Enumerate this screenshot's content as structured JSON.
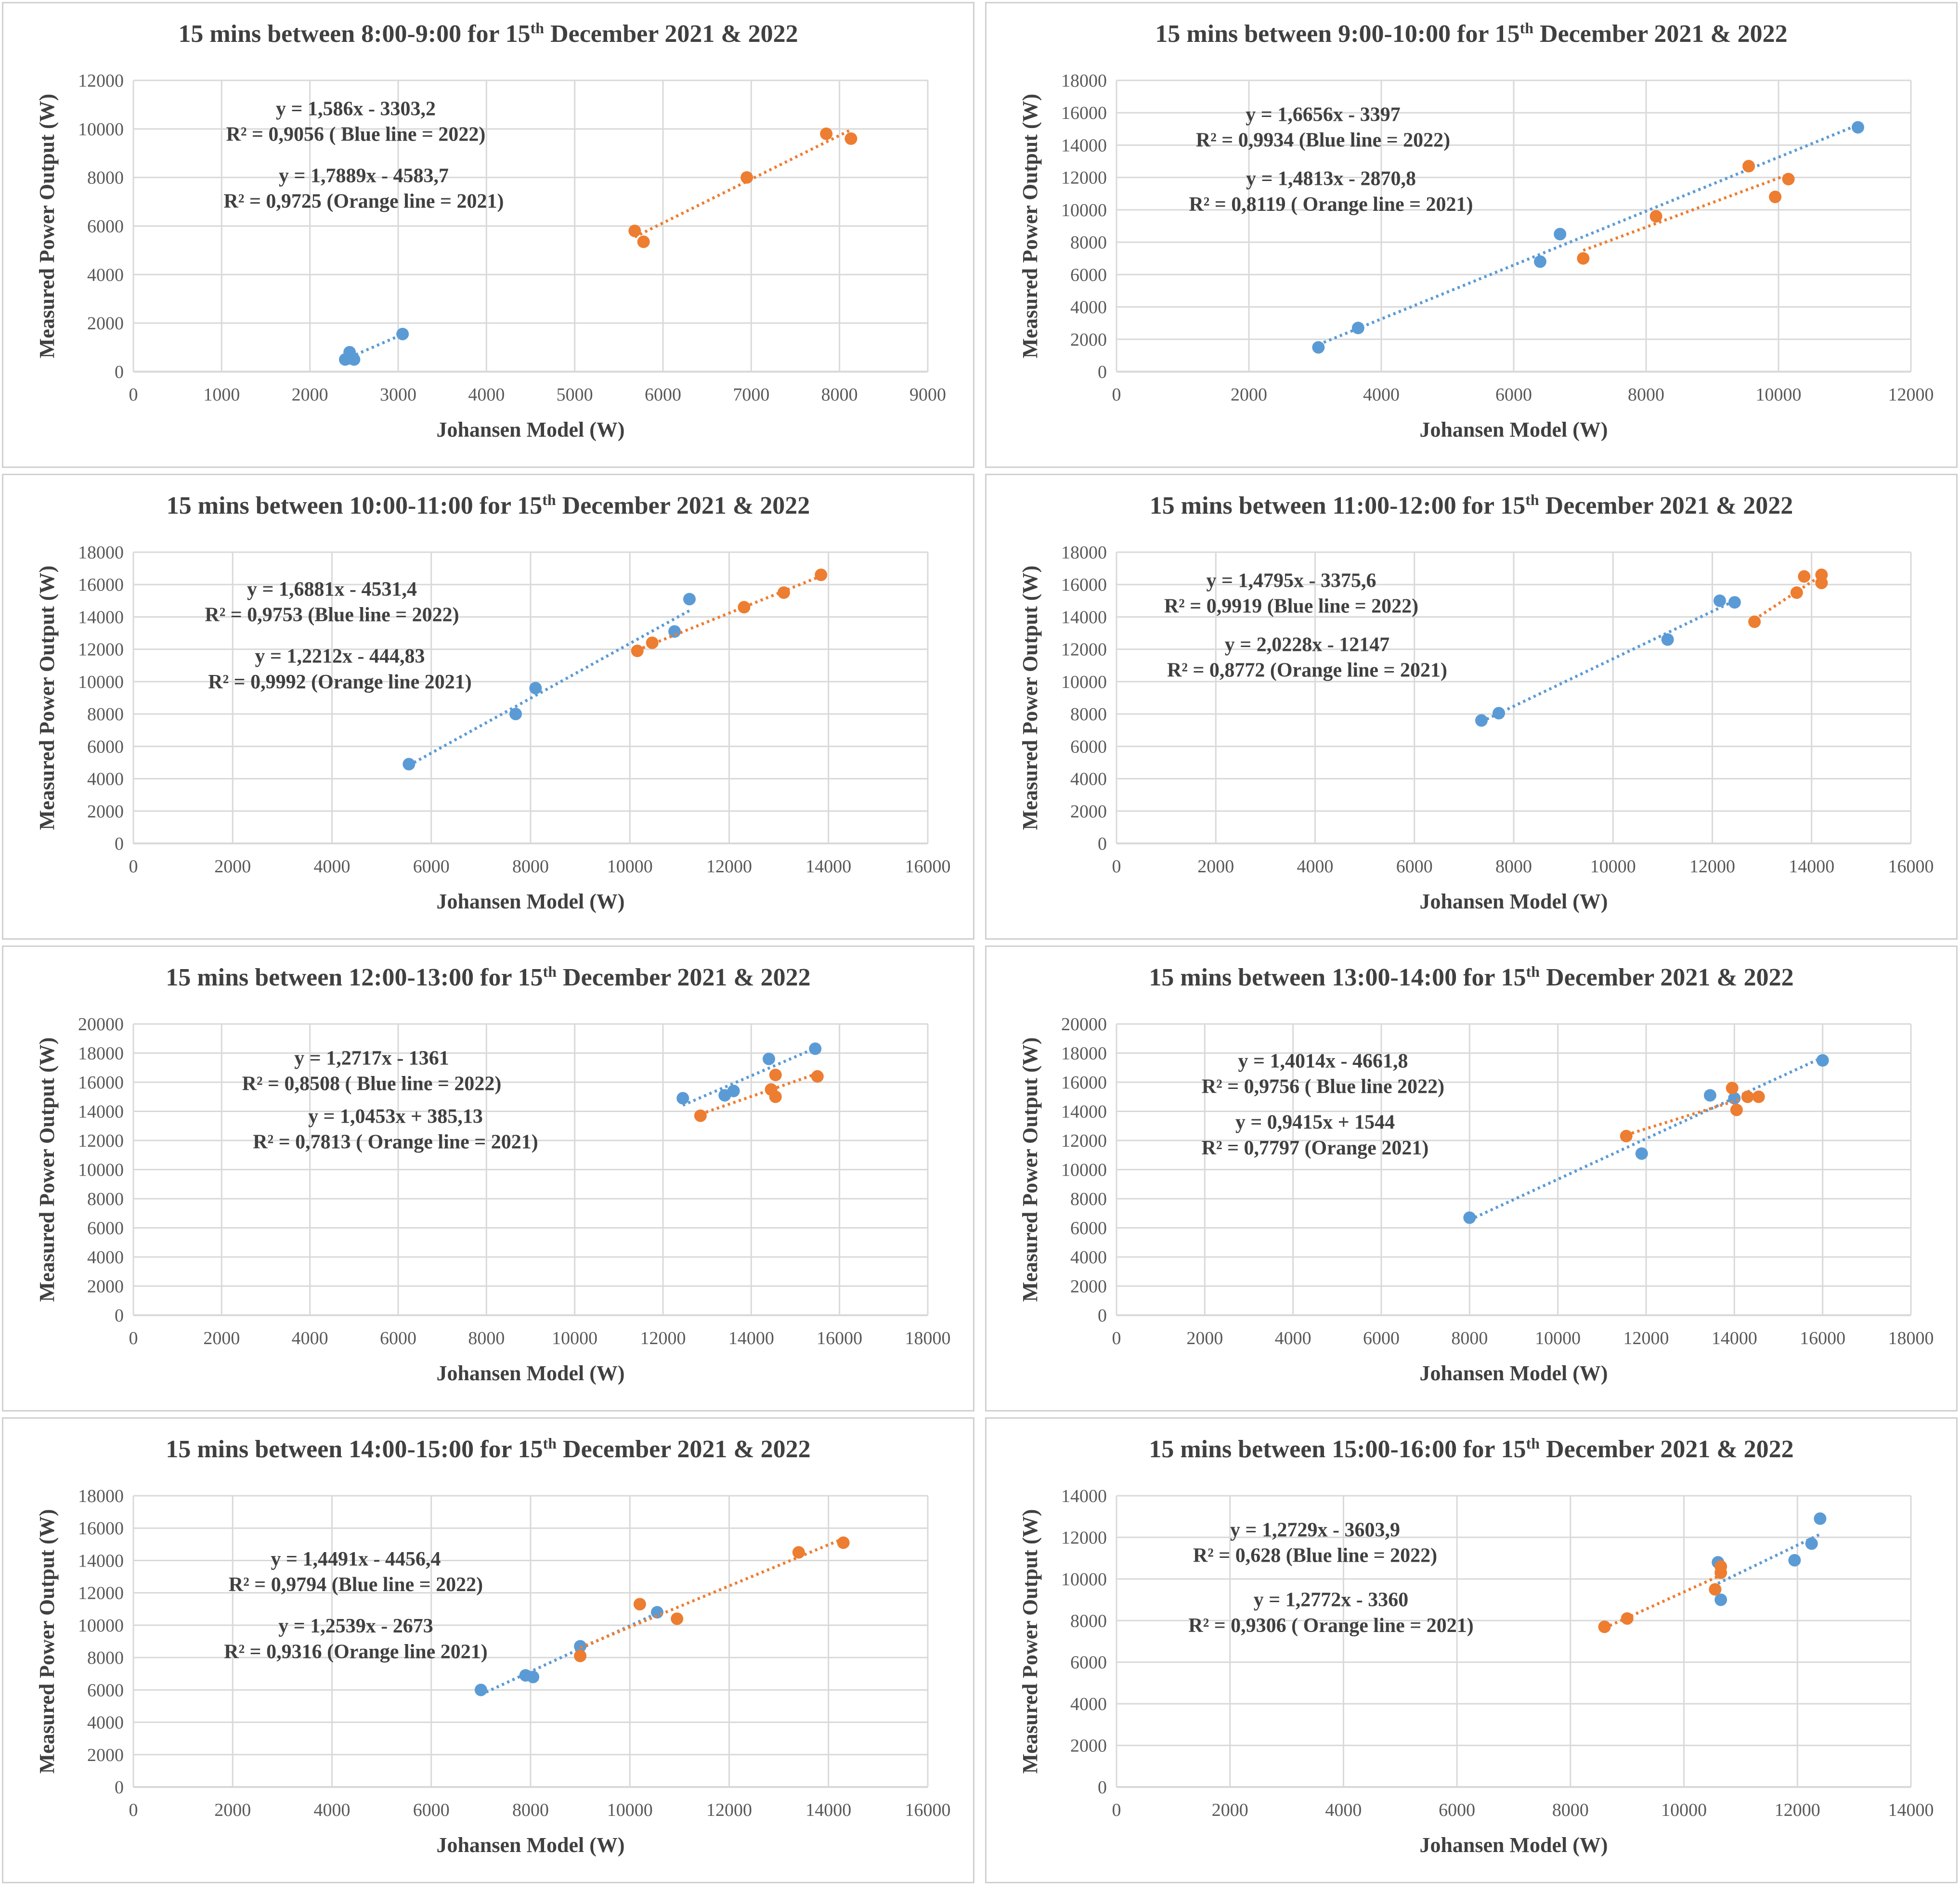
{
  "colors": {
    "blue": "#5B9BD5",
    "orange": "#ED7D31",
    "grid": "#d9d9d9"
  },
  "chart_data": [
    {
      "type": "scatter",
      "title": [
        "15 mins between 8:00-9:00 for 15",
        "th",
        " December 2021 & 2022"
      ],
      "xlabel": "Johansen Model (W)",
      "ylabel": "Measured Power Output (W)",
      "xlim": [
        0,
        9000
      ],
      "xstep": 1000,
      "ylim": [
        0,
        12000
      ],
      "ystep": 2000,
      "series": [
        {
          "name": "2022",
          "color": "blue",
          "points": [
            [
              2400,
              500
            ],
            [
              2450,
              800
            ],
            [
              2500,
              500
            ],
            [
              2450,
              550
            ],
            [
              3050,
              1550
            ]
          ]
        },
        {
          "name": "2021",
          "color": "orange",
          "points": [
            [
              5680,
              5800
            ],
            [
              5780,
              5350
            ],
            [
              6950,
              8000
            ],
            [
              7850,
              9800
            ],
            [
              8130,
              9600
            ]
          ]
        }
      ],
      "annotations": [
        "y = 1,586x - 3303,2",
        "R² = 0,9056 ( Blue line = 2022)",
        "y = 1,7889x - 4583,7",
        "R² = 0,9725 (Orange line = 2021)"
      ]
    },
    {
      "type": "scatter",
      "title": [
        "15 mins between 9:00-10:00 for 15",
        "th",
        " December 2021 & 2022"
      ],
      "xlabel": "Johansen Model (W)",
      "ylabel": "Measured Power Output (W)",
      "xlim": [
        0,
        12000
      ],
      "xstep": 2000,
      "ylim": [
        0,
        18000
      ],
      "ystep": 2000,
      "series": [
        {
          "name": "2022",
          "color": "blue",
          "points": [
            [
              3050,
              1500
            ],
            [
              3650,
              2700
            ],
            [
              6400,
              6800
            ],
            [
              6700,
              8500
            ],
            [
              11200,
              15100
            ]
          ]
        },
        {
          "name": "2021",
          "color": "orange",
          "points": [
            [
              7050,
              7000
            ],
            [
              8150,
              9600
            ],
            [
              9550,
              12700
            ],
            [
              9950,
              10800
            ],
            [
              10150,
              11900
            ]
          ]
        }
      ],
      "annotations": [
        "y = 1,6656x - 3397",
        "R² = 0,9934 (Blue line = 2022)",
        "y = 1,4813x - 2870,8",
        "R² = 0,8119 ( Orange line = 2021)"
      ]
    },
    {
      "type": "scatter",
      "title": [
        "15 mins between 10:00-11:00 for 15",
        "th",
        " December 2021 & 2022"
      ],
      "xlabel": "Johansen Model (W)",
      "ylabel": "Measured Power Output (W)",
      "xlim": [
        0,
        16000
      ],
      "xstep": 2000,
      "ylim": [
        0,
        18000
      ],
      "ystep": 2000,
      "series": [
        {
          "name": "2022",
          "color": "blue",
          "points": [
            [
              5550,
              4900
            ],
            [
              7700,
              8000
            ],
            [
              8100,
              9600
            ],
            [
              10900,
              13100
            ],
            [
              11200,
              15100
            ]
          ]
        },
        {
          "name": "2021",
          "color": "orange",
          "points": [
            [
              10150,
              11900
            ],
            [
              10450,
              12400
            ],
            [
              12300,
              14600
            ],
            [
              13100,
              15500
            ],
            [
              13850,
              16600
            ]
          ]
        }
      ],
      "annotations": [
        "y = 1,6881x - 4531,4",
        "R² = 0,9753 (Blue line = 2022)",
        "y = 1,2212x - 444,83",
        "R² = 0,9992 (Orange line 2021)"
      ]
    },
    {
      "type": "scatter",
      "title": [
        "15 mins between 11:00-12:00 for 15",
        "th",
        " December 2021 & 2022"
      ],
      "xlabel": "Johansen Model (W)",
      "ylabel": "Measured Power Output (W)",
      "xlim": [
        0,
        16000
      ],
      "xstep": 2000,
      "ylim": [
        0,
        18000
      ],
      "ystep": 2000,
      "series": [
        {
          "name": "2022",
          "color": "blue",
          "points": [
            [
              7350,
              7600
            ],
            [
              7700,
              8050
            ],
            [
              11100,
              12600
            ],
            [
              12150,
              15000
            ],
            [
              12450,
              14900
            ]
          ]
        },
        {
          "name": "2021",
          "color": "orange",
          "points": [
            [
              12850,
              13700
            ],
            [
              13700,
              15500
            ],
            [
              13850,
              16500
            ],
            [
              14200,
              16100
            ],
            [
              14200,
              16600
            ]
          ]
        }
      ],
      "annotations": [
        "y = 1,4795x - 3375,6",
        "R² = 0,9919 (Blue line = 2022)",
        "y = 2,0228x - 12147",
        "R² = 0,8772 (Orange line = 2021)"
      ]
    },
    {
      "type": "scatter",
      "title": [
        "15 mins between 12:00-13:00 for 15",
        "th",
        " December 2021 & 2022"
      ],
      "xlabel": "Johansen Model (W)",
      "ylabel": "Measured Power Output (W)",
      "xlim": [
        0,
        18000
      ],
      "xstep": 2000,
      "ylim": [
        0,
        20000
      ],
      "ystep": 2000,
      "series": [
        {
          "name": "2022",
          "color": "blue",
          "points": [
            [
              12450,
              14900
            ],
            [
              13400,
              15100
            ],
            [
              13600,
              15400
            ],
            [
              14400,
              17600
            ],
            [
              15450,
              18300
            ]
          ]
        },
        {
          "name": "2021",
          "color": "orange",
          "points": [
            [
              12850,
              13700
            ],
            [
              14450,
              15500
            ],
            [
              14550,
              15000
            ],
            [
              14550,
              16500
            ],
            [
              15500,
              16400
            ]
          ]
        }
      ],
      "annotations": [
        "y = 1,2717x - 1361",
        "R² = 0,8508 ( Blue line = 2022)",
        "y = 1,0453x + 385,13",
        "R² = 0,7813 ( Orange line = 2021)"
      ]
    },
    {
      "type": "scatter",
      "title": [
        "15 mins between 13:00-14:00 for 15",
        "th",
        " December 2021 & 2022"
      ],
      "xlabel": "Johansen Model (W)",
      "ylabel": "Measured Power Output (W)",
      "xlim": [
        0,
        18000
      ],
      "xstep": 2000,
      "ylim": [
        0,
        20000
      ],
      "ystep": 2000,
      "series": [
        {
          "name": "2022",
          "color": "blue",
          "points": [
            [
              8000,
              6700
            ],
            [
              11900,
              11100
            ],
            [
              13450,
              15100
            ],
            [
              14000,
              14900
            ],
            [
              16000,
              17500
            ]
          ]
        },
        {
          "name": "2021",
          "color": "orange",
          "points": [
            [
              11550,
              12300
            ],
            [
              13950,
              15600
            ],
            [
              14050,
              14100
            ],
            [
              14300,
              15000
            ],
            [
              14550,
              15000
            ]
          ]
        }
      ],
      "annotations": [
        "y = 1,4014x - 4661,8",
        "R² = 0,9756 ( Blue line 2022)",
        "y = 0,9415x + 1544",
        "R² = 0,7797 (Orange 2021)"
      ]
    },
    {
      "type": "scatter",
      "title": [
        "15 mins between 14:00-15:00 for 15",
        "th",
        " December 2021 & 2022"
      ],
      "xlabel": "Johansen Model (W)",
      "ylabel": "Measured Power Output (W)",
      "xlim": [
        0,
        16000
      ],
      "xstep": 2000,
      "ylim": [
        0,
        18000
      ],
      "ystep": 2000,
      "series": [
        {
          "name": "2022",
          "color": "blue",
          "points": [
            [
              7000,
              6000
            ],
            [
              7900,
              6900
            ],
            [
              8050,
              6800
            ],
            [
              9000,
              8700
            ],
            [
              10550,
              10800
            ]
          ]
        },
        {
          "name": "2021",
          "color": "orange",
          "points": [
            [
              9000,
              8100
            ],
            [
              10200,
              11300
            ],
            [
              10950,
              10400
            ],
            [
              13400,
              14500
            ],
            [
              14300,
              15100
            ]
          ]
        }
      ],
      "annotations": [
        "y = 1,4491x - 4456,4",
        "R² = 0,9794 (Blue line = 2022)",
        "y = 1,2539x - 2673",
        "R² = 0,9316 (Orange line 2021)"
      ]
    },
    {
      "type": "scatter",
      "title": [
        "15 mins between 15:00-16:00 for 15",
        "th",
        " December 2021 & 2022"
      ],
      "xlabel": "Johansen Model (W)",
      "ylabel": "Measured Power Output (W)",
      "xlim": [
        0,
        14000
      ],
      "xstep": 2000,
      "ylim": [
        0,
        14000
      ],
      "ystep": 2000,
      "series": [
        {
          "name": "2022",
          "color": "blue",
          "points": [
            [
              10600,
              10800
            ],
            [
              10650,
              9000
            ],
            [
              11950,
              10900
            ],
            [
              12250,
              11700
            ],
            [
              12400,
              12900
            ]
          ]
        },
        {
          "name": "2021",
          "color": "orange",
          "points": [
            [
              8600,
              7700
            ],
            [
              9000,
              8100
            ],
            [
              10550,
              9500
            ],
            [
              10650,
              10600
            ],
            [
              10650,
              10300
            ]
          ]
        }
      ],
      "annotations": [
        "y = 1,2729x - 3603,9",
        "R² = 0,628 (Blue line = 2022)",
        "y = 1,2772x - 3360",
        "R² = 0,9306 ( Orange line = 2021)"
      ]
    }
  ]
}
